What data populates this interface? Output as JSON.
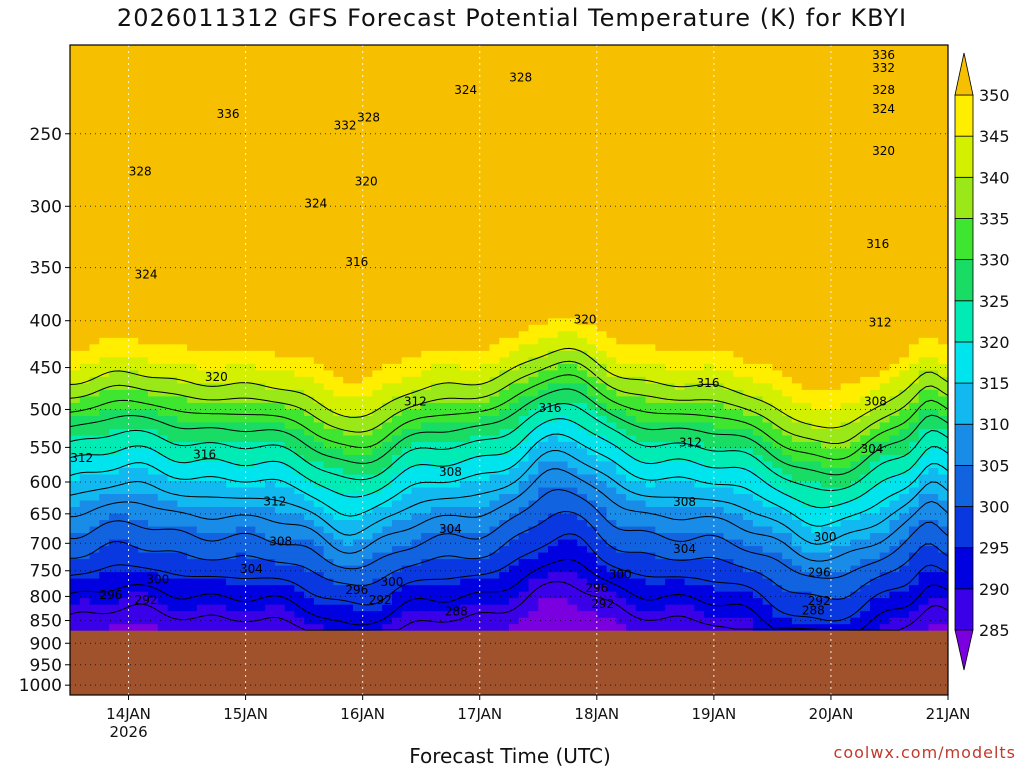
{
  "chart_data": {
    "type": "heatmap",
    "title": "2026011312 GFS Forecast Potential Temperature (K) for KBYI",
    "xlabel": "Forecast Time (UTC)",
    "ylabel": "",
    "credit": "coolwx.com/modelts",
    "x_ticks": [
      {
        "label": "14JAN",
        "sub": "2026",
        "day": 14
      },
      {
        "label": "15JAN",
        "sub": "",
        "day": 15
      },
      {
        "label": "16JAN",
        "sub": "",
        "day": 16
      },
      {
        "label": "17JAN",
        "sub": "",
        "day": 17
      },
      {
        "label": "18JAN",
        "sub": "",
        "day": 18
      },
      {
        "label": "19JAN",
        "sub": "",
        "day": 19
      },
      {
        "label": "20JAN",
        "sub": "",
        "day": 20
      },
      {
        "label": "21JAN",
        "sub": "",
        "day": 21
      }
    ],
    "x_range_days": [
      13.5,
      21.0
    ],
    "y_range_hpa": [
      1025,
      200
    ],
    "y_ticks": [
      250,
      300,
      350,
      400,
      450,
      500,
      550,
      600,
      650,
      700,
      750,
      800,
      850,
      900,
      950,
      1000
    ],
    "ground_level_hpa": 872,
    "ground_color": "#a0522d",
    "colorbar": {
      "levels": [
        285,
        290,
        295,
        300,
        305,
        310,
        315,
        320,
        325,
        330,
        335,
        340,
        345,
        350
      ],
      "colors": [
        "#7a00e0",
        "#3a00e8",
        "#0000e0",
        "#0a38e0",
        "#1263e0",
        "#198ce8",
        "#12b8f0",
        "#00e4ee",
        "#00ecb4",
        "#18dc64",
        "#3ee630",
        "#9ae818",
        "#d2f000",
        "#ffee00",
        "#f6c000"
      ]
    },
    "contour_labels": [
      {
        "text": "336",
        "day": 14.85,
        "hpa": 238
      },
      {
        "text": "332",
        "day": 15.85,
        "hpa": 245
      },
      {
        "text": "328",
        "day": 16.05,
        "hpa": 240
      },
      {
        "text": "324",
        "day": 16.88,
        "hpa": 224
      },
      {
        "text": "328",
        "day": 17.35,
        "hpa": 217
      },
      {
        "text": "336",
        "day": 20.45,
        "hpa": 205
      },
      {
        "text": "332",
        "day": 20.45,
        "hpa": 212
      },
      {
        "text": "328",
        "day": 20.45,
        "hpa": 224
      },
      {
        "text": "324",
        "day": 20.45,
        "hpa": 235
      },
      {
        "text": "320",
        "day": 20.45,
        "hpa": 261
      },
      {
        "text": "316",
        "day": 20.4,
        "hpa": 330
      },
      {
        "text": "312",
        "day": 20.42,
        "hpa": 402
      },
      {
        "text": "308",
        "day": 20.38,
        "hpa": 490
      },
      {
        "text": "304",
        "day": 20.35,
        "hpa": 552
      },
      {
        "text": "300",
        "day": 19.95,
        "hpa": 689
      },
      {
        "text": "296",
        "day": 19.9,
        "hpa": 753
      },
      {
        "text": "292",
        "day": 19.9,
        "hpa": 809
      },
      {
        "text": "288",
        "day": 19.85,
        "hpa": 829
      },
      {
        "text": "328",
        "day": 14.1,
        "hpa": 275
      },
      {
        "text": "324",
        "day": 15.6,
        "hpa": 298
      },
      {
        "text": "324",
        "day": 14.15,
        "hpa": 356
      },
      {
        "text": "320",
        "day": 16.03,
        "hpa": 282
      },
      {
        "text": "316",
        "day": 15.95,
        "hpa": 345
      },
      {
        "text": "320",
        "day": 14.75,
        "hpa": 461
      },
      {
        "text": "312",
        "day": 16.45,
        "hpa": 490
      },
      {
        "text": "316",
        "day": 14.65,
        "hpa": 560
      },
      {
        "text": "312",
        "day": 13.6,
        "hpa": 565
      },
      {
        "text": "312",
        "day": 15.25,
        "hpa": 630
      },
      {
        "text": "308",
        "day": 16.75,
        "hpa": 585
      },
      {
        "text": "308",
        "day": 15.3,
        "hpa": 697
      },
      {
        "text": "304",
        "day": 16.75,
        "hpa": 675
      },
      {
        "text": "304",
        "day": 15.05,
        "hpa": 747
      },
      {
        "text": "300",
        "day": 14.25,
        "hpa": 767
      },
      {
        "text": "300",
        "day": 16.25,
        "hpa": 772
      },
      {
        "text": "296",
        "day": 13.85,
        "hpa": 797
      },
      {
        "text": "292",
        "day": 14.15,
        "hpa": 807
      },
      {
        "text": "296",
        "day": 15.95,
        "hpa": 787
      },
      {
        "text": "292",
        "day": 16.15,
        "hpa": 807
      },
      {
        "text": "288",
        "day": 16.8,
        "hpa": 831
      },
      {
        "text": "320",
        "day": 17.9,
        "hpa": 399
      },
      {
        "text": "316",
        "day": 17.6,
        "hpa": 498
      },
      {
        "text": "316",
        "day": 18.95,
        "hpa": 468
      },
      {
        "text": "312",
        "day": 18.8,
        "hpa": 543
      },
      {
        "text": "308",
        "day": 18.75,
        "hpa": 631
      },
      {
        "text": "304",
        "day": 18.75,
        "hpa": 710
      },
      {
        "text": "300",
        "day": 18.2,
        "hpa": 757
      },
      {
        "text": "296",
        "day": 18.0,
        "hpa": 783
      },
      {
        "text": "292",
        "day": 18.05,
        "hpa": 815
      }
    ]
  }
}
